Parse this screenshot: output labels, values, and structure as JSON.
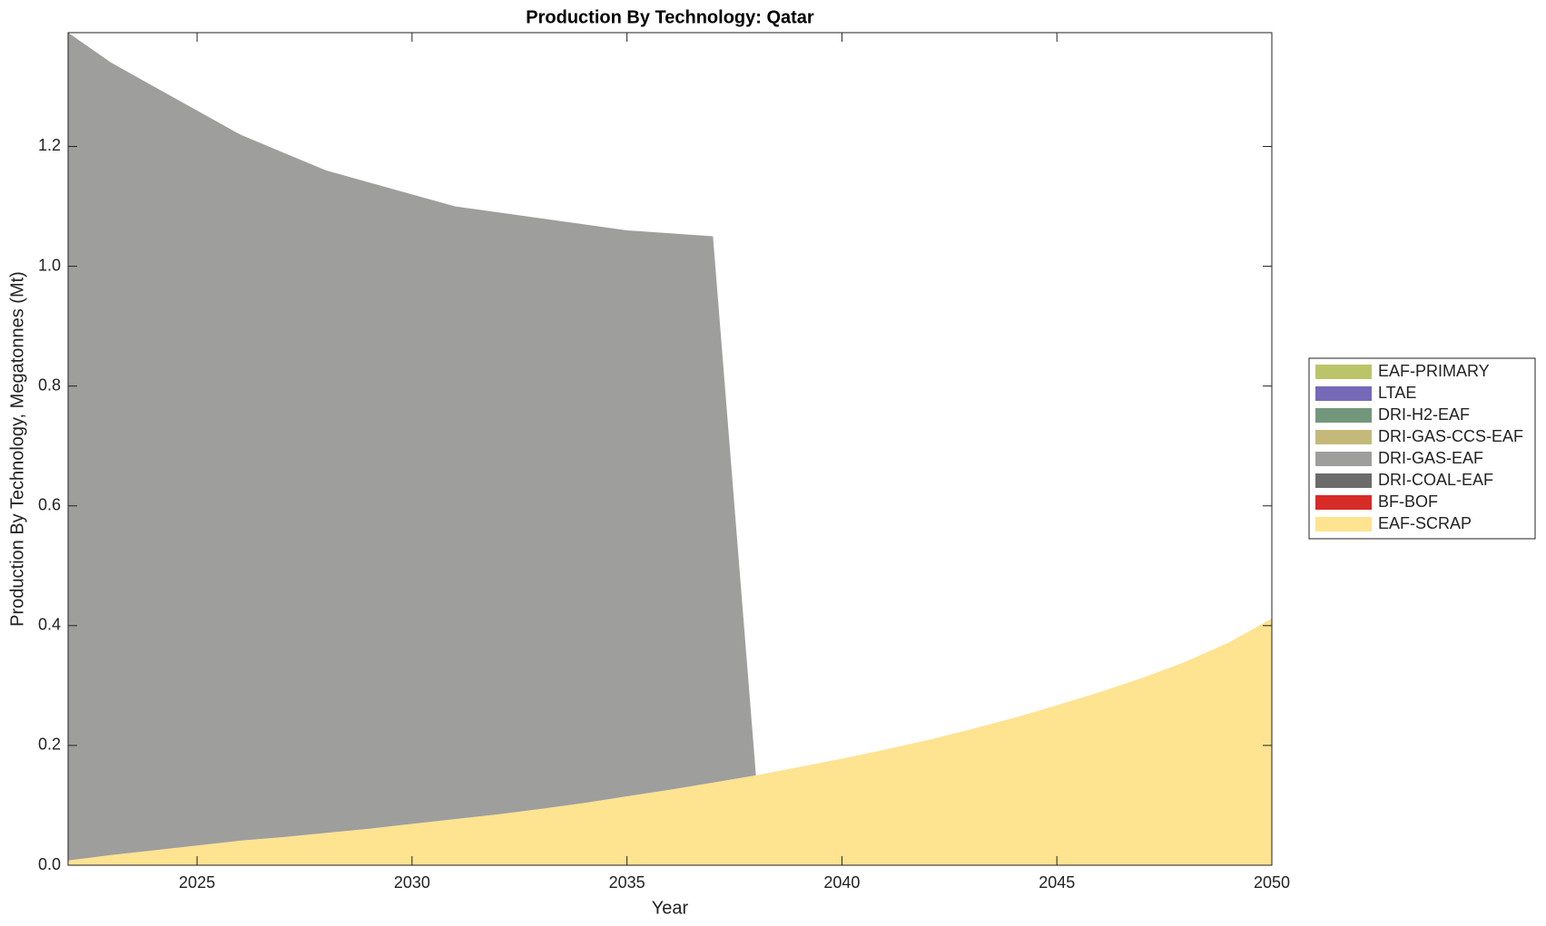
{
  "chart_data": {
    "type": "stacked_area",
    "title": "Production By Technology: Qatar",
    "xlabel": "Year",
    "ylabel": "Production By Technology, Megatonnes (Mt)",
    "x": [
      2022,
      2023,
      2024,
      2025,
      2026,
      2027,
      2028,
      2029,
      2030,
      2031,
      2032,
      2033,
      2034,
      2035,
      2036,
      2037,
      2038,
      2039,
      2040,
      2041,
      2042,
      2043,
      2044,
      2045,
      2046,
      2047,
      2048,
      2049,
      2050
    ],
    "xlim": [
      2022,
      2050
    ],
    "xticks": [
      2025,
      2030,
      2035,
      2040,
      2045,
      2050
    ],
    "ylim": [
      0,
      1.39
    ],
    "yticks": [
      {
        "value": 0,
        "label": "0.0"
      },
      0.2,
      0.4,
      0.6,
      0.8,
      {
        "value": 1,
        "label": "1.0"
      },
      1.2
    ],
    "legend": "right",
    "series": [
      {
        "name": "EAF-SCRAP",
        "color": "#fee391",
        "values": [
          0.008,
          0.017,
          0.025,
          0.033,
          0.041,
          0.047,
          0.054,
          0.061,
          0.069,
          0.077,
          0.085,
          0.094,
          0.104,
          0.115,
          0.126,
          0.138,
          0.15,
          0.164,
          0.178,
          0.193,
          0.209,
          0.227,
          0.246,
          0.267,
          0.289,
          0.313,
          0.34,
          0.372,
          0.412
        ]
      },
      {
        "name": "BF-BOF",
        "color": "#d62b27",
        "values": [
          0,
          0,
          0,
          0,
          0,
          0,
          0,
          0,
          0,
          0,
          0,
          0,
          0,
          0,
          0,
          0,
          0,
          0,
          0,
          0,
          0,
          0,
          0,
          0,
          0,
          0,
          0,
          0,
          0
        ]
      },
      {
        "name": "DRI-COAL-EAF",
        "color": "#6b6b6b",
        "values": [
          0,
          0,
          0,
          0,
          0,
          0,
          0,
          0,
          0,
          0,
          0,
          0,
          0,
          0,
          0,
          0,
          0,
          0,
          0,
          0,
          0,
          0,
          0,
          0,
          0,
          0,
          0,
          0,
          0
        ]
      },
      {
        "name": "DRI-GAS-EAF",
        "color": "#9e9e9c",
        "values": [
          1.382,
          1.323,
          1.275,
          1.227,
          1.179,
          1.143,
          1.106,
          1.079,
          1.051,
          1.023,
          1.005,
          0.986,
          0.966,
          0.945,
          0.929,
          0.912,
          0,
          0,
          0,
          0,
          0,
          0,
          0,
          0,
          0,
          0,
          0,
          0,
          0
        ]
      },
      {
        "name": "DRI-GAS-CCS-EAF",
        "color": "#c4b97a",
        "values": [
          0,
          0,
          0,
          0,
          0,
          0,
          0,
          0,
          0,
          0,
          0,
          0,
          0,
          0,
          0,
          0,
          0,
          0,
          0,
          0,
          0,
          0,
          0,
          0,
          0,
          0,
          0,
          0,
          0
        ]
      },
      {
        "name": "DRI-H2-EAF",
        "color": "#73977a",
        "values": [
          0,
          0,
          0,
          0,
          0,
          0,
          0,
          0,
          0,
          0,
          0,
          0,
          0,
          0,
          0,
          0,
          0,
          0,
          0,
          0,
          0,
          0,
          0,
          0,
          0,
          0,
          0,
          0,
          0
        ]
      },
      {
        "name": "LTAE",
        "color": "#7569b8",
        "values": [
          0,
          0,
          0,
          0,
          0,
          0,
          0,
          0,
          0,
          0,
          0,
          0,
          0,
          0,
          0,
          0,
          0,
          0,
          0,
          0,
          0,
          0,
          0,
          0,
          0,
          0,
          0,
          0,
          0
        ]
      },
      {
        "name": "EAF-PRIMARY",
        "color": "#bcc46a",
        "values": [
          0,
          0,
          0,
          0,
          0,
          0,
          0,
          0,
          0,
          0,
          0,
          0,
          0,
          0,
          0,
          0,
          0,
          0,
          0,
          0,
          0,
          0,
          0,
          0,
          0,
          0,
          0,
          0,
          0
        ]
      }
    ]
  }
}
